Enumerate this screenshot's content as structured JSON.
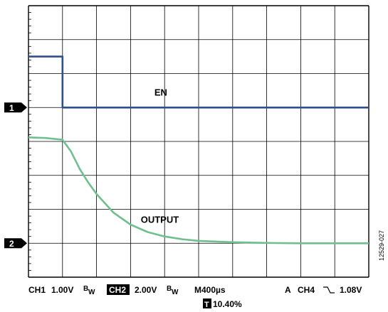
{
  "chart_data": {
    "type": "line",
    "title": "",
    "xlabel": "",
    "ylabel": "",
    "grid": true,
    "x_divisions": 10,
    "y_divisions": 8,
    "x_range": [
      0,
      10
    ],
    "y_range": [
      0,
      8
    ],
    "series": [
      {
        "name": "EN",
        "color": "#2f4f8f",
        "channel_marker": "1",
        "marker_level": 5.0,
        "points": [
          [
            0,
            6.5
          ],
          [
            1.0,
            6.5
          ],
          [
            1.0,
            5.0
          ],
          [
            10,
            5.0
          ]
        ]
      },
      {
        "name": "OUTPUT",
        "color": "#6fbf8f",
        "channel_marker": "2",
        "marker_level": 1.0,
        "points": [
          [
            0,
            4.12
          ],
          [
            0.5,
            4.1
          ],
          [
            1.0,
            4.05
          ],
          [
            1.25,
            3.7
          ],
          [
            1.5,
            3.2
          ],
          [
            1.75,
            2.8
          ],
          [
            2.0,
            2.45
          ],
          [
            2.5,
            1.9
          ],
          [
            3.0,
            1.55
          ],
          [
            3.5,
            1.33
          ],
          [
            4.0,
            1.2
          ],
          [
            4.5,
            1.12
          ],
          [
            5.0,
            1.07
          ],
          [
            6.0,
            1.03
          ],
          [
            7.0,
            1.01
          ],
          [
            8.0,
            1.0
          ],
          [
            9.0,
            1.0
          ],
          [
            10.0,
            1.0
          ]
        ]
      }
    ],
    "annotations": [
      {
        "text": "EN",
        "x": 3.7,
        "y": 5.35
      },
      {
        "text": "OUTPUT",
        "x": 3.3,
        "y": 1.6
      }
    ],
    "footer": {
      "ch1_label": "CH1",
      "ch1_scale": "1.00V",
      "bw1": "B",
      "bw1_sub": "W",
      "ch2_label": "CH2",
      "ch2_scale": "2.00V",
      "bw2": "B",
      "bw2_sub": "W",
      "timebase": "M400µs",
      "trigger": "A",
      "trigger_source": "CH4",
      "trigger_slope": "⏷",
      "trigger_level": "1.08V",
      "trigger_marker": "T",
      "trigger_position": "10.40%"
    },
    "figure_id": "12529-027"
  }
}
